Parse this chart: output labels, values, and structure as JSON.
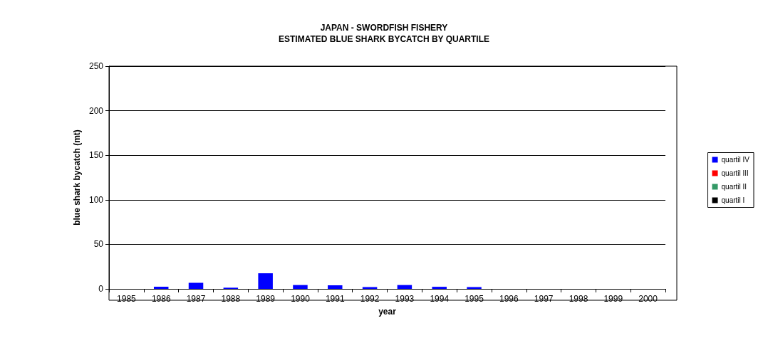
{
  "chart_data": {
    "type": "bar",
    "title": "JAPAN - SWORDFISH FISHERY\nESTIMATED BLUE SHARK BYCATCH BY QUARTILE",
    "xlabel": "year",
    "ylabel": "blue shark bycatch (mt)",
    "categories": [
      "1985",
      "1986",
      "1987",
      "1988",
      "1989",
      "1990",
      "1991",
      "1992",
      "1993",
      "1994",
      "1995",
      "1996",
      "1997",
      "1998",
      "1999",
      "2000"
    ],
    "series": [
      {
        "name": "quartil IV",
        "color": "#0000ff",
        "values": [
          0,
          2.3,
          6.8,
          1.3,
          17.5,
          4.3,
          4,
          2,
          4.3,
          2.3,
          2,
          0,
          0,
          0,
          0,
          0
        ]
      },
      {
        "name": "quartil III",
        "color": "#ff0000",
        "values": [
          0,
          0,
          0,
          0,
          0,
          0,
          0,
          0,
          0,
          0,
          0,
          0,
          0,
          0,
          0,
          0
        ]
      },
      {
        "name": "quartil II",
        "color": "#339966",
        "values": [
          0,
          0,
          0,
          0,
          0,
          0,
          0,
          0,
          0,
          0,
          0,
          0,
          0,
          0,
          0,
          0
        ]
      },
      {
        "name": "quartil I",
        "color": "#000000",
        "values": [
          0,
          0,
          0,
          0,
          0,
          0,
          0,
          0,
          0,
          0,
          0,
          0,
          0,
          0,
          0,
          0
        ]
      }
    ],
    "stacked": true,
    "ylim": [
      0,
      250
    ],
    "yticks": [
      0,
      50,
      100,
      150,
      200,
      250
    ],
    "grid": "y",
    "legend": "right"
  }
}
